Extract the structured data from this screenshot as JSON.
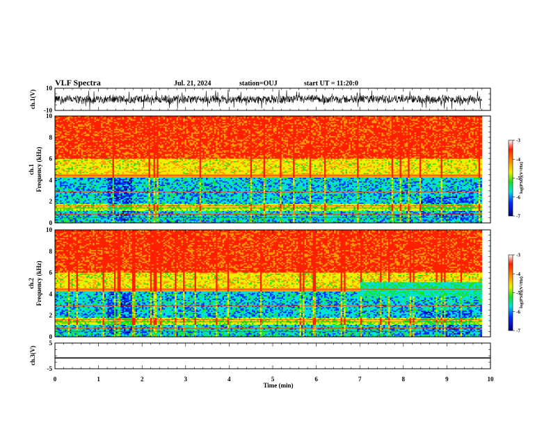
{
  "header": {
    "title": "VLF Spectra",
    "date": "Jul. 21, 2024",
    "station": "station=OUJ",
    "start": "start UT =  11:20:0"
  },
  "chart_data": [
    {
      "type": "line",
      "panel": "ch.1 waveform",
      "ylabel": "ch.1(V)",
      "ylim": [
        -10,
        10
      ],
      "y_ticks": [
        -10,
        10
      ],
      "xlim": [
        0,
        10
      ],
      "data_extent_min": 9.8,
      "description_level": {
        "typical_amplitude_v": 4,
        "peak_amplitude_v": 9
      }
    },
    {
      "type": "heatmap",
      "panel": "ch.1 spectrogram",
      "ylabel_line1": "ch.1",
      "ylabel_line2": "Frequency (kHz)",
      "ylim": [
        0,
        10
      ],
      "y_ticks": [
        0,
        2,
        4,
        6,
        8,
        10
      ],
      "xlim": [
        0,
        10
      ],
      "data_extent_min": 9.8,
      "colorbar": {
        "label": "log(PSD)(V²/Hz)",
        "range": [
          -7,
          -3
        ],
        "ticks": [
          "-3",
          "-4",
          "-5",
          "-6",
          "-7"
        ]
      }
    },
    {
      "type": "heatmap",
      "panel": "ch.2 spectrogram",
      "ylabel_line1": "ch.2",
      "ylabel_line2": "Frequency (kHz)",
      "ylim": [
        0,
        10
      ],
      "y_ticks": [
        0,
        2,
        4,
        6,
        8,
        10
      ],
      "xlim": [
        0,
        10
      ],
      "data_extent_min": 9.8,
      "colorbar": {
        "label": "log(PSD)(V²/Hz)",
        "range": [
          -7,
          -3
        ],
        "ticks": [
          "-3",
          "-4",
          "-5",
          "-6",
          "-7"
        ]
      }
    },
    {
      "type": "line",
      "panel": "ch.3 waveform",
      "ylabel": "ch.3(V)",
      "ylim": [
        -5,
        5
      ],
      "y_ticks": [
        -5,
        5
      ],
      "xlim": [
        0,
        10
      ],
      "constant_value_v": -0.8
    }
  ],
  "xaxis": {
    "label": "Time (min)",
    "ticks": [
      "0",
      "1",
      "2",
      "3",
      "4",
      "5",
      "6",
      "7",
      "8",
      "9",
      "10"
    ]
  },
  "colors": {
    "red": "#ff2000",
    "orange": "#ff9a00",
    "yellow": "#f0f000",
    "green": "#20e020",
    "cyan": "#00e0e0",
    "blue": "#0030ff",
    "navy": "#000080",
    "white": "#ffffff"
  }
}
